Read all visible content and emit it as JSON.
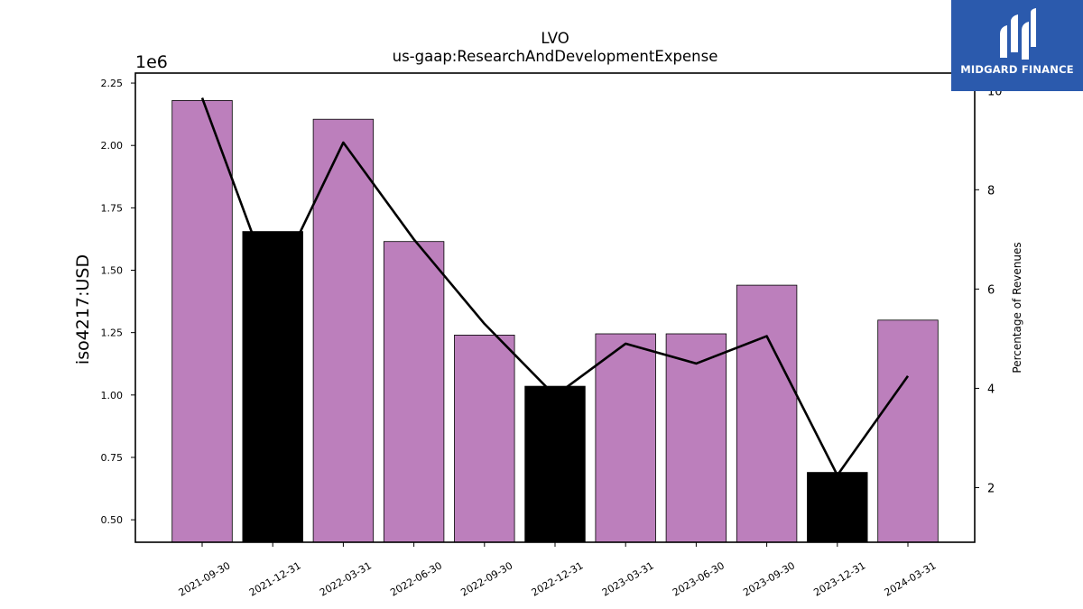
{
  "chart_data": {
    "type": "bar",
    "title": "LVO",
    "subtitle": "us-gaap:ResearchAndDevelopmentExpense",
    "ylabel": "iso4217:USD",
    "y_multiplier_label": "1e6",
    "y2label": "Percentage of Revenues",
    "ylim": [
      0.41,
      2.29
    ],
    "y2lim": [
      0.9,
      10.35
    ],
    "yticks": [
      "0.50",
      "0.75",
      "1.00",
      "1.25",
      "1.50",
      "1.75",
      "2.00",
      "2.25"
    ],
    "y2ticks": [
      "2",
      "4",
      "6",
      "8",
      "10"
    ],
    "categories": [
      "2021-09-30",
      "2021-12-31",
      "2022-03-31",
      "2022-06-30",
      "2022-09-30",
      "2022-12-31",
      "2023-03-31",
      "2023-06-30",
      "2023-09-30",
      "2023-12-31",
      "2024-03-31"
    ],
    "series": [
      {
        "values": [
          2.18,
          1.655,
          2.105,
          1.615,
          1.24,
          1.035,
          1.245,
          1.245,
          1.44,
          0.69,
          1.3
        ],
        "colors": [
          "#bc7fbc",
          "#000000",
          "#bc7fbc",
          "#bc7fbc",
          "#bc7fbc",
          "#000000",
          "#bc7fbc",
          "#bc7fbc",
          "#bc7fbc",
          "#000000",
          "#bc7fbc"
        ]
      },
      {
        "type": "line",
        "axis": "right",
        "values": [
          9.85,
          6.0,
          8.95,
          7.0,
          5.3,
          3.85,
          4.9,
          4.5,
          5.05,
          2.25,
          4.25
        ],
        "color": "#000000"
      }
    ],
    "grid": false
  },
  "logo": {
    "text": "MIDGARD FINANCE",
    "background": "#2b5aad"
  }
}
